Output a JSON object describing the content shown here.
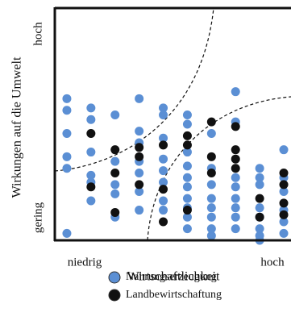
{
  "chart_data": {
    "type": "scatter",
    "x_label": "Wirtschaftlichkeit",
    "y_label": "Wirkungen auf die Umwelt",
    "x_end_labels": [
      "niedrig",
      "hoch"
    ],
    "y_end_labels": [
      "gering",
      "hoch"
    ],
    "xlim": [
      0,
      9.8
    ],
    "ylim": [
      0,
      10
    ],
    "series": [
      {
        "name": "Nahrungserzeugung",
        "color": "#5b8fd4",
        "x": [
          0.5,
          0.5,
          0.5,
          0.5,
          0.5,
          0.5,
          1.5,
          1.5,
          1.5,
          1.5,
          1.5,
          1.5,
          2.5,
          2.5,
          2.5,
          2.5,
          2.5,
          3.5,
          3.5,
          3.5,
          3.5,
          3.5,
          3.5,
          3.5,
          4.5,
          4.5,
          4.5,
          4.5,
          4.5,
          4.5,
          4.5,
          4.5,
          5.5,
          5.5,
          5.5,
          5.5,
          5.5,
          5.5,
          5.5,
          5.5,
          5.5,
          5.5,
          6.5,
          6.5,
          6.5,
          6.5,
          6.5,
          6.5,
          6.5,
          6.5,
          7.5,
          7.5,
          7.5,
          7.5,
          7.5,
          7.5,
          7.5,
          7.5,
          8.5,
          8.5,
          8.5,
          8.5,
          8.5,
          8.5,
          8.5,
          8.5,
          9.5,
          9.5,
          9.5,
          9.5,
          9.5,
          9.5
        ],
        "y": [
          6.1,
          5.6,
          4.6,
          3.6,
          3.1,
          0.3,
          5.7,
          5.2,
          3.8,
          2.8,
          2.5,
          1.7,
          5.4,
          3.4,
          2.4,
          2.0,
          1.0,
          6.1,
          4.7,
          4.2,
          3.4,
          2.9,
          2.1,
          1.3,
          5.7,
          5.4,
          4.4,
          3.5,
          3.0,
          2.5,
          1.7,
          1.3,
          5.4,
          5.0,
          3.8,
          3.2,
          2.7,
          2.3,
          1.8,
          1.4,
          1.0,
          0.5,
          4.6,
          3.1,
          2.4,
          1.8,
          1.4,
          1.0,
          0.5,
          0.2,
          6.4,
          5.1,
          2.7,
          2.3,
          1.8,
          1.4,
          1.0,
          0.5,
          3.1,
          2.7,
          2.4,
          1.4,
          1.0,
          0.5,
          0.2,
          0,
          3.9,
          2.7,
          2.1,
          1.3,
          0.8,
          0.3
        ]
      },
      {
        "name": "Landbewirtschaftung",
        "color": "#111111",
        "x": [
          1.5,
          1.5,
          2.5,
          2.5,
          2.5,
          3.5,
          3.5,
          3.5,
          4.5,
          4.5,
          4.5,
          5.5,
          5.5,
          5.5,
          6.5,
          6.5,
          6.5,
          7.5,
          7.5,
          7.5,
          7.5,
          8.5,
          8.5,
          9.5,
          9.5,
          9.5,
          9.5
        ],
        "y": [
          4.6,
          2.3,
          3.9,
          2.9,
          1.2,
          4.0,
          3.6,
          2.4,
          4.1,
          2.2,
          0.8,
          4.5,
          4.1,
          1.3,
          5.1,
          3.6,
          2.9,
          4.9,
          3.9,
          3.5,
          3.1,
          1.8,
          1.0,
          2.9,
          2.4,
          1.6,
          1.1
        ]
      }
    ]
  }
}
